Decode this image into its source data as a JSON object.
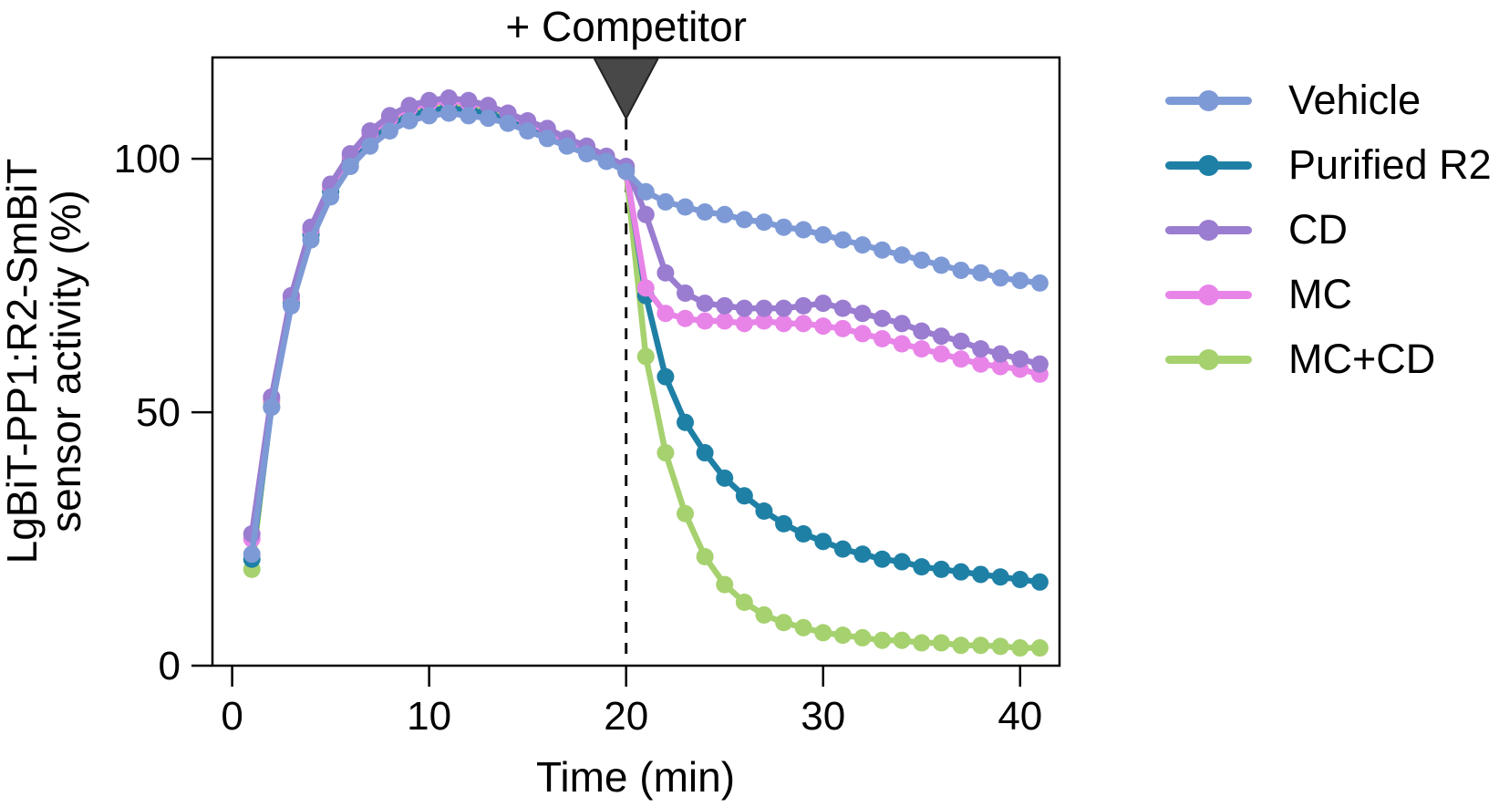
{
  "chart_data": {
    "type": "line",
    "title": "",
    "annotation": {
      "text": "+ Competitor",
      "x": 20,
      "marker": "triangle-down",
      "marker_color": "#484848",
      "vline_style": "dashed"
    },
    "xlabel": "Time (min)",
    "ylabel": "LgBiT-PP1:R2-SmBiT sensor activity (%)",
    "ylabel_line1": "LgBiT-PP1:R2-SmBiT",
    "ylabel_line2": "sensor activity (%)",
    "x_ticks": [
      0,
      10,
      20,
      30,
      40
    ],
    "y_ticks": [
      0,
      50,
      100
    ],
    "x_range": [
      -1,
      42
    ],
    "y_range": [
      0,
      120
    ],
    "grid": false,
    "legend_position": "right",
    "frame_color": "#000000",
    "x": [
      1,
      2,
      3,
      4,
      5,
      6,
      7,
      8,
      9,
      10,
      11,
      12,
      13,
      14,
      15,
      16,
      17,
      18,
      19,
      20,
      21,
      22,
      23,
      24,
      25,
      26,
      27,
      28,
      29,
      30,
      31,
      32,
      33,
      34,
      35,
      36,
      37,
      38,
      39,
      40,
      41
    ],
    "series": [
      {
        "name": "Vehicle",
        "color": "#7e9ad6",
        "values": [
          22,
          51,
          71,
          84,
          92.5,
          98.5,
          102.5,
          105.5,
          107.5,
          108.5,
          109,
          108.5,
          108,
          107,
          105.5,
          104,
          102.5,
          101,
          99.5,
          97.5,
          93.5,
          91.5,
          90.5,
          89.5,
          89,
          88,
          87.5,
          86.5,
          86,
          85,
          84,
          83,
          82,
          81,
          80,
          79,
          78,
          77.5,
          76.5,
          76,
          75.5
        ]
      },
      {
        "name": "Purified R2",
        "color": "#1f80a6",
        "values": [
          21,
          51,
          71.5,
          85,
          93.5,
          99.5,
          103.5,
          106.5,
          108.5,
          109.5,
          110,
          109.5,
          109,
          107.5,
          106,
          104.5,
          103,
          101.5,
          100,
          98,
          73,
          57,
          48,
          42,
          37,
          33.5,
          30.5,
          28,
          26,
          24.5,
          23,
          22,
          21,
          20.5,
          19.5,
          19,
          18.5,
          18,
          17.5,
          17,
          16.5
        ]
      },
      {
        "name": "CD",
        "color": "#9a7cd0",
        "values": [
          26,
          53,
          73,
          86.5,
          95,
          101,
          105.5,
          108.5,
          110.5,
          111.5,
          112,
          111.5,
          110.5,
          109,
          107.5,
          106,
          104,
          102.5,
          100.5,
          98.5,
          89,
          77.5,
          73.5,
          71.5,
          71,
          70.5,
          70.5,
          70.5,
          71,
          71.5,
          70.5,
          69.5,
          68.5,
          67.5,
          66,
          65,
          64,
          62.5,
          61.5,
          60.5,
          59.5
        ]
      },
      {
        "name": "MC",
        "color": "#e884e8",
        "values": [
          25,
          52.5,
          72.5,
          86,
          94.5,
          100.5,
          105,
          108,
          110,
          111,
          111.5,
          111,
          110.5,
          109,
          107,
          105.5,
          103.5,
          102,
          100,
          97.5,
          74.5,
          69.5,
          68.5,
          68,
          68,
          67.5,
          68,
          67.5,
          67.5,
          67,
          66.5,
          65.5,
          64.5,
          63.5,
          62.5,
          61.5,
          60.5,
          59.5,
          59,
          58.5,
          57.5
        ]
      },
      {
        "name": "MC+CD",
        "color": "#a6d16f",
        "values": [
          19,
          52,
          72,
          85.5,
          94,
          100,
          104,
          107,
          109,
          110,
          110.5,
          110,
          109.5,
          108,
          106.5,
          105,
          103,
          101.5,
          100,
          97.5,
          61,
          42,
          30,
          21.5,
          16,
          12.5,
          10,
          8.5,
          7.5,
          6.5,
          6,
          5.5,
          5,
          5,
          4.5,
          4.5,
          4,
          4,
          3.8,
          3.5,
          3.5
        ]
      }
    ],
    "draw_order": [
      4,
      1,
      3,
      2,
      0
    ]
  }
}
